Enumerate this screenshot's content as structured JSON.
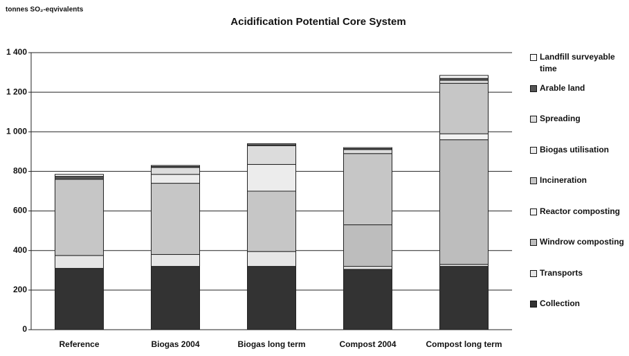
{
  "chart_data": {
    "type": "stacked_bar",
    "title": "Acidification Potential Core System",
    "y_label": "tonnes SO₂-eqvivalents",
    "categories": [
      "Reference",
      "Biogas 2004",
      "Biogas long term",
      "Compost 2004",
      "Compost long term"
    ],
    "series": [
      {
        "name": "Collection",
        "color": "#333333",
        "values": [
          310,
          320,
          320,
          305,
          320
        ]
      },
      {
        "name": "Transports",
        "color": "#e6e6e6",
        "values": [
          65,
          60,
          75,
          15,
          10
        ]
      },
      {
        "name": "Windrow composting",
        "color": "#bdbdbd",
        "values": [
          0,
          0,
          0,
          210,
          630
        ]
      },
      {
        "name": "Reactor composting",
        "color": "#f2f2f2",
        "values": [
          0,
          0,
          0,
          0,
          30
        ]
      },
      {
        "name": "Incineration",
        "color": "#c6c6c6",
        "values": [
          385,
          360,
          305,
          360,
          255
        ]
      },
      {
        "name": "Biogas utilisation",
        "color": "#ececec",
        "values": [
          0,
          45,
          135,
          0,
          0
        ]
      },
      {
        "name": "Spreading",
        "color": "#dcdcdc",
        "values": [
          0,
          35,
          95,
          20,
          15
        ]
      },
      {
        "name": "Arable land",
        "color": "#555555",
        "values": [
          15,
          5,
          5,
          5,
          10
        ]
      },
      {
        "name": "Landfill surveyable time",
        "color": "#f7f7f7",
        "values": [
          10,
          5,
          5,
          5,
          15
        ]
      }
    ],
    "ylim": [
      0,
      1400
    ],
    "yticks": [
      0,
      200,
      400,
      600,
      800,
      {
        "value": 1000,
        "label": "1 000"
      },
      {
        "value": 1200,
        "label": "1 200"
      },
      {
        "value": 1400,
        "label": "1 400"
      }
    ],
    "grid": true
  }
}
